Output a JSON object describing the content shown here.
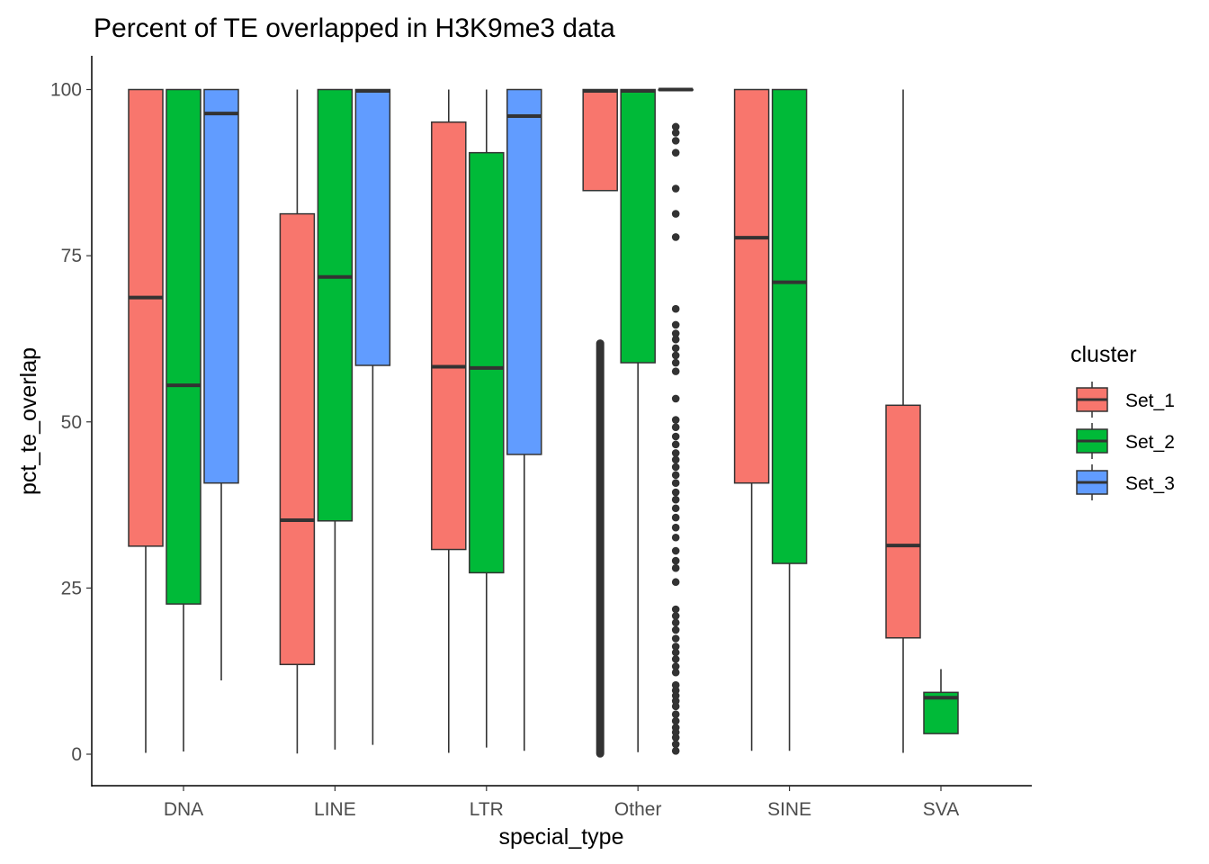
{
  "chart_data": {
    "type": "boxplot",
    "title": "Percent of TE overlapped in H3K9me3 data",
    "xlabel": "special_type",
    "ylabel": "pct_te_overlap",
    "ylim": [
      -4.5,
      105
    ],
    "yticks": [
      0,
      25,
      50,
      75,
      100
    ],
    "categories": [
      "DNA",
      "LINE",
      "LTR",
      "Other",
      "SINE",
      "SVA"
    ],
    "legend": {
      "title": "cluster",
      "position": "right",
      "entries": [
        {
          "name": "Set_1",
          "color": "#F8766D"
        },
        {
          "name": "Set_2",
          "color": "#00BA38"
        },
        {
          "name": "Set_3",
          "color": "#619CFF"
        }
      ]
    },
    "series": [
      {
        "name": "Set_1",
        "color": "#F8766D",
        "boxes": [
          {
            "category": "DNA",
            "min": 0.2,
            "q1": 31.3,
            "median": 68.7,
            "q3": 100,
            "max": 100
          },
          {
            "category": "LINE",
            "min": 0.1,
            "q1": 13.5,
            "median": 35.2,
            "q3": 81.3,
            "max": 100
          },
          {
            "category": "LTR",
            "min": 0.2,
            "q1": 30.8,
            "median": 58.3,
            "q3": 95.1,
            "max": 100
          },
          {
            "category": "Other",
            "min": 84.8,
            "q1": 84.8,
            "median": 99.8,
            "q3": 100,
            "max": 100,
            "outliers_band": [
              0.1,
              61.8
            ]
          },
          {
            "category": "SINE",
            "min": 0.5,
            "q1": 40.8,
            "median": 77.7,
            "q3": 100,
            "max": 100
          },
          {
            "category": "SVA",
            "min": 0.2,
            "q1": 17.5,
            "median": 31.4,
            "q3": 52.5,
            "max": 100
          }
        ]
      },
      {
        "name": "Set_2",
        "color": "#00BA38",
        "boxes": [
          {
            "category": "DNA",
            "min": 0.4,
            "q1": 22.6,
            "median": 55.5,
            "q3": 100,
            "max": 100
          },
          {
            "category": "LINE",
            "min": 0.7,
            "q1": 35.1,
            "median": 71.8,
            "q3": 100,
            "max": 100
          },
          {
            "category": "LTR",
            "min": 1.0,
            "q1": 27.3,
            "median": 58.1,
            "q3": 90.5,
            "max": 100
          },
          {
            "category": "Other",
            "min": 0.3,
            "q1": 58.9,
            "median": 99.8,
            "q3": 100,
            "max": 100
          },
          {
            "category": "SINE",
            "min": 0.5,
            "q1": 28.7,
            "median": 71.0,
            "q3": 100,
            "max": 100
          },
          {
            "category": "SVA",
            "min": 3.1,
            "q1": 3.1,
            "median": 8.5,
            "q3": 9.3,
            "max": 12.8
          }
        ]
      },
      {
        "name": "Set_3",
        "color": "#619CFF",
        "boxes": [
          {
            "category": "DNA",
            "min": 11.1,
            "q1": 40.8,
            "median": 96.4,
            "q3": 100,
            "max": 100
          },
          {
            "category": "LINE",
            "min": 1.4,
            "q1": 58.5,
            "median": 99.8,
            "q3": 100,
            "max": 100
          },
          {
            "category": "LTR",
            "min": 0.5,
            "q1": 45.1,
            "median": 96.0,
            "q3": 100,
            "max": 100
          },
          {
            "category": "Other",
            "min": 100,
            "q1": 100,
            "median": 100,
            "q3": 100,
            "max": 100,
            "outliers": [
              0.5,
              1.5,
              2.5,
              3.3,
              4.0,
              5.0,
              6.0,
              7.2,
              8.0,
              8.8,
              9.6,
              10.4,
              12.3,
              13.2,
              14.3,
              15.3,
              16.2,
              17.4,
              18.7,
              19.8,
              20.8,
              21.8,
              25.9,
              28.0,
              29.1,
              30.6,
              32.6,
              34.1,
              35.6,
              37.0,
              38.3,
              39.4,
              40.8,
              42.0,
              43.2,
              44.3,
              45.3,
              46.6,
              47.8,
              49.2,
              50.3,
              53.5,
              57.6,
              58.9,
              60.0,
              61.1,
              62.4,
              63.3,
              64.6,
              67.0,
              77.8,
              81.3,
              85.1,
              90.5,
              92.3,
              93.5,
              94.4
            ]
          }
        ]
      }
    ]
  }
}
